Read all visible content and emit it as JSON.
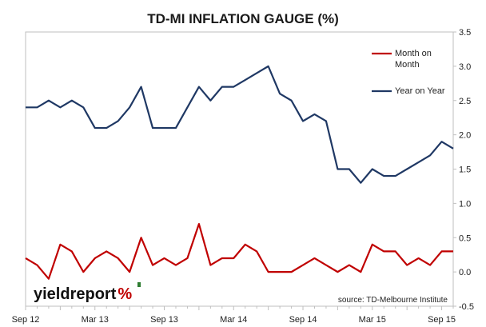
{
  "chart_data": {
    "type": "line",
    "title": "TD-MI INFLATION GAUGE (%)",
    "xlabel": "",
    "ylabel": "",
    "ylim": [
      -0.5,
      3.5
    ],
    "yticks": [
      "-0.5",
      "0.0",
      "0.5",
      "1.0",
      "1.5",
      "2.0",
      "2.5",
      "3.0",
      "3.5"
    ],
    "yaxis_side": "right",
    "x_tick_labels": [
      "Sep 12",
      "Mar 13",
      "Sep 13",
      "Mar 14",
      "Sep 14",
      "Mar 15",
      "Sep 15"
    ],
    "x_tick_months": [
      0,
      6,
      12,
      18,
      24,
      30,
      36
    ],
    "n_months": 38,
    "grid": false,
    "legend_position": "top-right",
    "series": [
      {
        "name": "Month on Month",
        "color": "#c00000",
        "values": [
          0.2,
          0.1,
          -0.1,
          0.4,
          0.3,
          0.0,
          0.2,
          0.3,
          0.2,
          0.0,
          0.5,
          0.1,
          0.2,
          0.1,
          0.2,
          0.7,
          0.1,
          0.2,
          0.2,
          0.4,
          0.3,
          0.0,
          0.0,
          0.0,
          0.1,
          0.2,
          0.1,
          0.0,
          0.1,
          0.0,
          0.4,
          0.3,
          0.3,
          0.1,
          0.2,
          0.1,
          0.3,
          0.3
        ]
      },
      {
        "name": "Year on Year",
        "color": "#1f3864",
        "values": [
          2.4,
          2.4,
          2.5,
          2.4,
          2.5,
          2.4,
          2.1,
          2.1,
          2.2,
          2.4,
          2.7,
          2.1,
          2.1,
          2.1,
          2.4,
          2.7,
          2.5,
          2.7,
          2.7,
          2.8,
          2.9,
          3.0,
          2.6,
          2.5,
          2.2,
          2.3,
          2.2,
          1.5,
          1.5,
          1.3,
          1.5,
          1.4,
          1.4,
          1.5,
          1.6,
          1.7,
          1.9,
          1.8
        ]
      }
    ],
    "annotations": [
      "source: TD-Melbourne Institute"
    ]
  },
  "branding": {
    "logo": "yieldreport %",
    "logo_colors": [
      "#111111",
      "#c00000",
      "#2e7d32"
    ]
  }
}
